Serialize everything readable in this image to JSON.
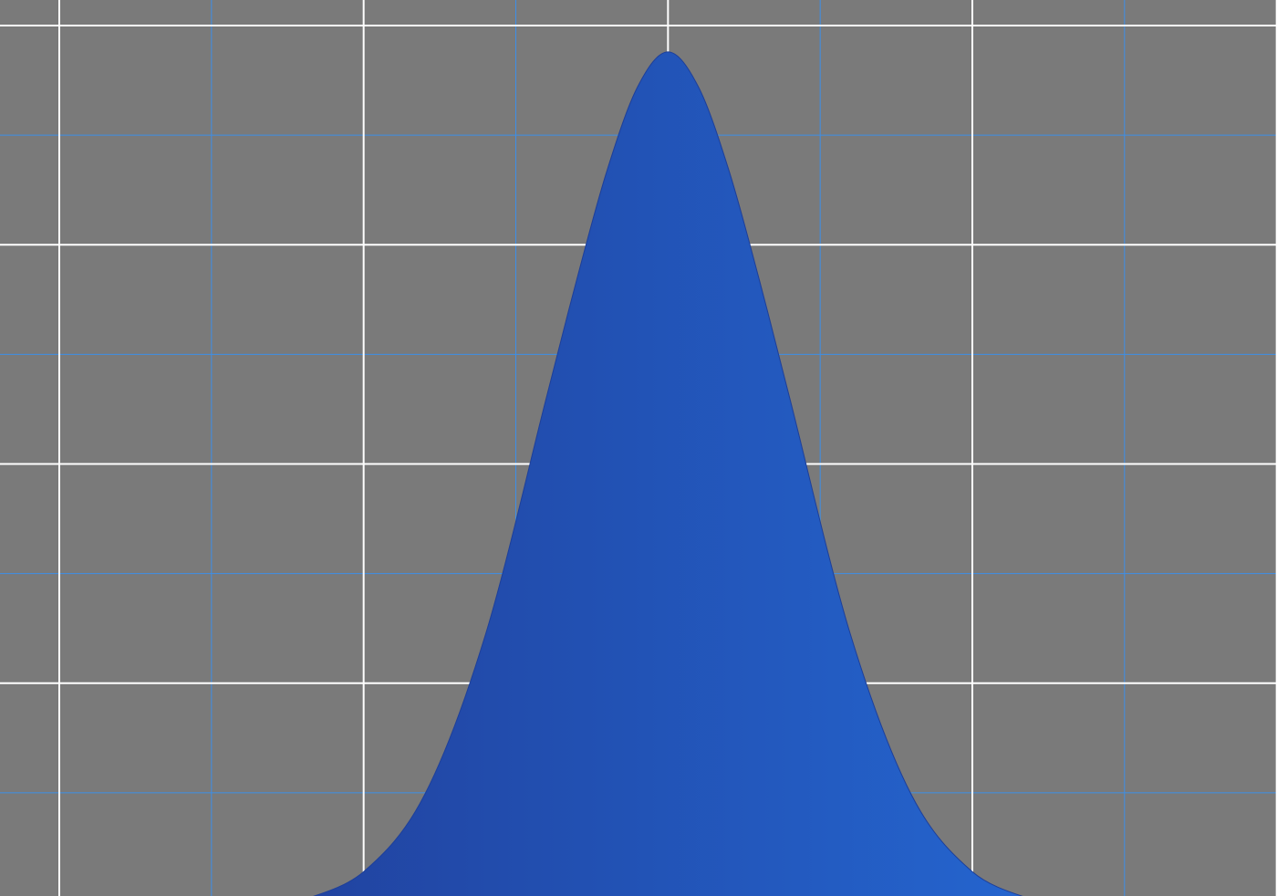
{
  "chart_data": {
    "type": "area",
    "title": "",
    "xlabel": "",
    "ylabel": "",
    "xlim": [
      -4,
      4
    ],
    "ylim": [
      0,
      4
    ],
    "grid": true,
    "legend": "none",
    "x_major_ticks": [
      -4,
      -2,
      0,
      2,
      4
    ],
    "x_minor_ticks": [
      -3,
      -1,
      1,
      3
    ],
    "y_major_ticks": [
      0,
      1,
      2,
      3,
      4
    ],
    "y_minor_ticks": [
      0.5,
      1.5,
      2.5,
      3.5
    ],
    "series": [
      {
        "x": [
          -2.4,
          -2.0,
          -1.6,
          -1.2,
          -0.8,
          -0.6,
          -0.4,
          -0.2,
          0.0,
          0.2,
          0.4,
          0.6,
          0.8,
          1.2,
          1.6,
          2.0,
          2.4
        ],
        "y": [
          0.01,
          0.14,
          0.49,
          1.22,
          2.3,
          2.84,
          3.34,
          3.72,
          3.88,
          3.72,
          3.34,
          2.84,
          2.3,
          1.22,
          0.49,
          0.14,
          0.01
        ]
      }
    ],
    "colors": {
      "background": "#7a7a7a",
      "grid_major": "#ffffff",
      "grid_minor": "#3d8fe8",
      "fill_left": "#2143a0",
      "fill_right": "#2465cf"
    }
  }
}
